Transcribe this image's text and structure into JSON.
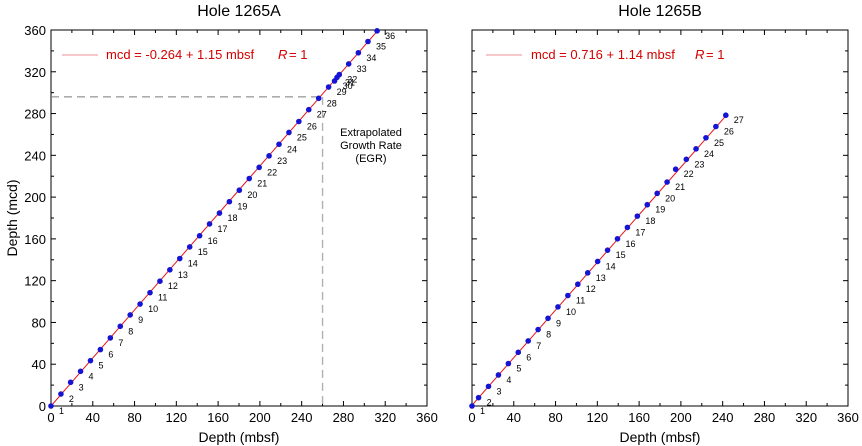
{
  "chart_data": [
    {
      "type": "scatter",
      "id": "A",
      "title": "Hole 1265A",
      "xlabel": "Depth (mbsf)",
      "ylabel": "Depth (mcd)",
      "xlim": [
        0,
        360
      ],
      "ylim": [
        0,
        360
      ],
      "xticks": [
        "0",
        "40",
        "80",
        "120",
        "160",
        "200",
        "240",
        "280",
        "320",
        "360"
      ],
      "yticks": [
        "0",
        "40",
        "80",
        "120",
        "160",
        "200",
        "240",
        "280",
        "320",
        "360"
      ],
      "fit": {
        "intercept": -0.264,
        "slope": 1.15
      },
      "legend": {
        "text": "mcd = -0.264 + 1.15 mbsf",
        "r_label": "R",
        "r_value": "= 1",
        "placement": "top-left"
      },
      "egr": {
        "lines": [
          "Extrapolated",
          "Growth Rate",
          "(EGR)"
        ],
        "x": 260,
        "y": 296
      },
      "points": [
        {
          "label": "1",
          "x": 0.0,
          "y": 0.0
        },
        {
          "label": "2",
          "x": 9.5,
          "y": 11.5
        },
        {
          "label": "3",
          "x": 18.8,
          "y": 22.7
        },
        {
          "label": "4",
          "x": 28.3,
          "y": 33.2
        },
        {
          "label": "5",
          "x": 37.8,
          "y": 43.4
        },
        {
          "label": "6",
          "x": 47.3,
          "y": 54.0
        },
        {
          "label": "7",
          "x": 56.8,
          "y": 65.2
        },
        {
          "label": "8",
          "x": 66.3,
          "y": 76.3
        },
        {
          "label": "9",
          "x": 75.8,
          "y": 87.2
        },
        {
          "label": "10",
          "x": 85.3,
          "y": 97.6
        },
        {
          "label": "11",
          "x": 94.8,
          "y": 108.5
        },
        {
          "label": "12",
          "x": 104.3,
          "y": 119.5
        },
        {
          "label": "13",
          "x": 113.8,
          "y": 130.4
        },
        {
          "label": "14",
          "x": 123.3,
          "y": 141.2
        },
        {
          "label": "15",
          "x": 132.8,
          "y": 152.3
        },
        {
          "label": "16",
          "x": 142.3,
          "y": 163.0
        },
        {
          "label": "17",
          "x": 151.8,
          "y": 174.3
        },
        {
          "label": "18",
          "x": 161.3,
          "y": 184.7
        },
        {
          "label": "19",
          "x": 170.8,
          "y": 195.6
        },
        {
          "label": "20",
          "x": 180.3,
          "y": 206.6
        },
        {
          "label": "21",
          "x": 189.8,
          "y": 217.8
        },
        {
          "label": "22",
          "x": 199.3,
          "y": 228.5
        },
        {
          "label": "23",
          "x": 208.8,
          "y": 239.5
        },
        {
          "label": "24",
          "x": 218.3,
          "y": 250.6
        },
        {
          "label": "25",
          "x": 227.8,
          "y": 261.9
        },
        {
          "label": "26",
          "x": 237.3,
          "y": 272.4
        },
        {
          "label": "27",
          "x": 246.8,
          "y": 283.7
        },
        {
          "label": "28",
          "x": 256.3,
          "y": 294.6
        },
        {
          "label": "29",
          "x": 265.8,
          "y": 305.4
        },
        {
          "label": "30",
          "x": 271.5,
          "y": 311.2
        },
        {
          "label": "31",
          "x": 273.8,
          "y": 314.6
        },
        {
          "label": "32",
          "x": 276.0,
          "y": 317.3
        },
        {
          "label": "33",
          "x": 285.0,
          "y": 327.5
        },
        {
          "label": "34",
          "x": 294.3,
          "y": 338.2
        },
        {
          "label": "35",
          "x": 303.5,
          "y": 349.0
        },
        {
          "label": "36",
          "x": 312.2,
          "y": 359.2
        }
      ]
    },
    {
      "type": "scatter",
      "id": "B",
      "title": "Hole 1265B",
      "xlabel": "Depth (mbsf)",
      "ylabel": "",
      "xlim": [
        0,
        360
      ],
      "ylim": [
        0,
        360
      ],
      "xticks": [
        "0",
        "40",
        "80",
        "120",
        "160",
        "200",
        "240",
        "280",
        "320",
        "360"
      ],
      "yticks": [],
      "fit": {
        "intercept": 0.716,
        "slope": 1.14
      },
      "legend": {
        "text": "mcd = 0.716 + 1.14 mbsf",
        "r_label": "R",
        "r_value": "= 1",
        "placement": "top-left"
      },
      "points": [
        {
          "label": "1",
          "x": 0.0,
          "y": 0.0
        },
        {
          "label": "2",
          "x": 6.3,
          "y": 8.0
        },
        {
          "label": "3",
          "x": 15.8,
          "y": 18.8
        },
        {
          "label": "4",
          "x": 25.3,
          "y": 29.7
        },
        {
          "label": "5",
          "x": 34.8,
          "y": 40.6
        },
        {
          "label": "6",
          "x": 44.3,
          "y": 51.4
        },
        {
          "label": "7",
          "x": 53.8,
          "y": 62.3
        },
        {
          "label": "8",
          "x": 63.3,
          "y": 73.2
        },
        {
          "label": "9",
          "x": 72.8,
          "y": 84.0
        },
        {
          "label": "10",
          "x": 82.3,
          "y": 94.9
        },
        {
          "label": "11",
          "x": 91.8,
          "y": 105.8
        },
        {
          "label": "12",
          "x": 101.3,
          "y": 116.6
        },
        {
          "label": "13",
          "x": 110.8,
          "y": 127.5
        },
        {
          "label": "14",
          "x": 120.3,
          "y": 138.4
        },
        {
          "label": "15",
          "x": 129.8,
          "y": 149.2
        },
        {
          "label": "16",
          "x": 139.3,
          "y": 160.1
        },
        {
          "label": "17",
          "x": 148.8,
          "y": 171.0
        },
        {
          "label": "18",
          "x": 158.3,
          "y": 181.8
        },
        {
          "label": "19",
          "x": 167.8,
          "y": 192.7
        },
        {
          "label": "20",
          "x": 177.3,
          "y": 203.6
        },
        {
          "label": "21",
          "x": 186.8,
          "y": 214.4
        },
        {
          "label": "22",
          "x": 195.0,
          "y": 226.7
        },
        {
          "label": "23",
          "x": 205.2,
          "y": 236.2
        },
        {
          "label": "24",
          "x": 214.5,
          "y": 246.2
        },
        {
          "label": "25",
          "x": 224.0,
          "y": 256.8
        },
        {
          "label": "26",
          "x": 233.5,
          "y": 267.6
        },
        {
          "label": "27",
          "x": 243.0,
          "y": 278.4
        }
      ]
    }
  ]
}
